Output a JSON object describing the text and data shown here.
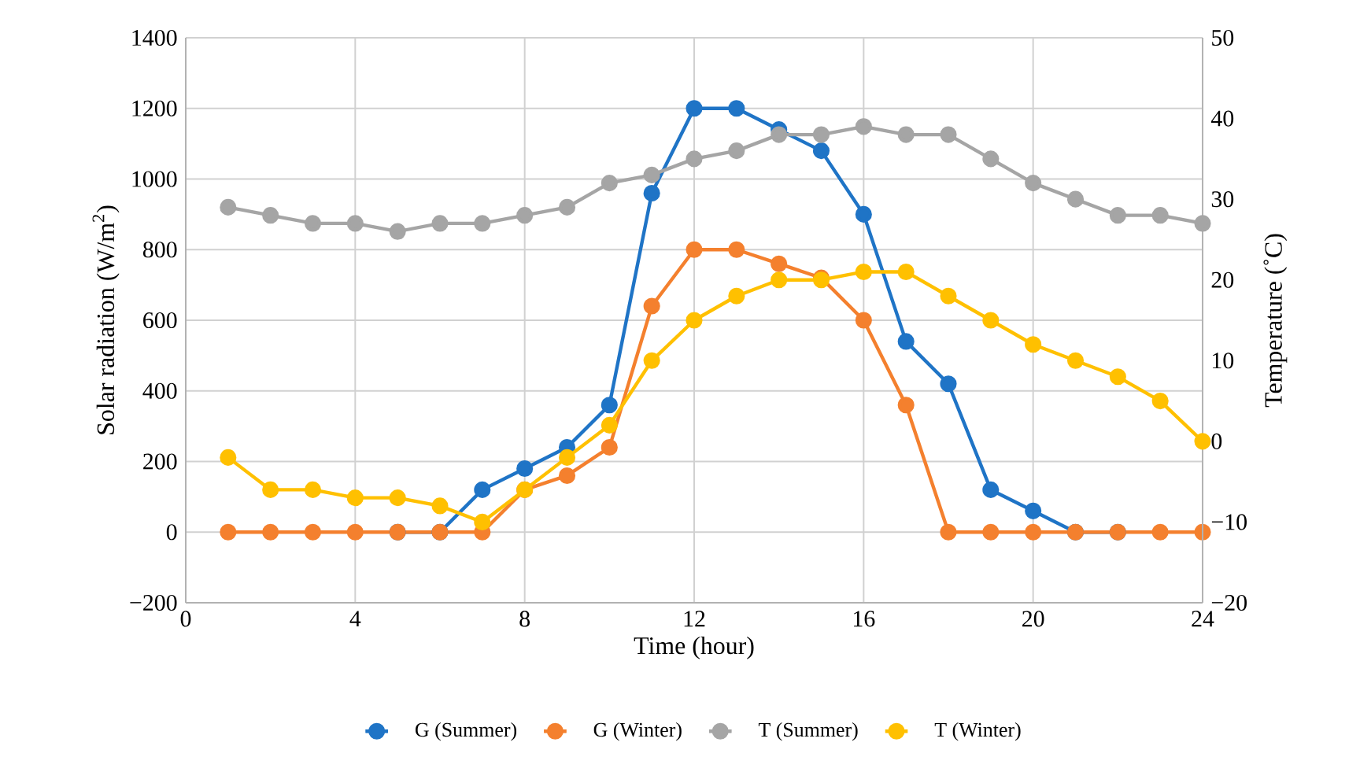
{
  "chart_data": {
    "type": "line",
    "xlabel": "Time (hour)",
    "ylabel": "Solar radiation (W/m$^{2}$)",
    "y2label": "Temperature (˚C)",
    "x": [
      1,
      2,
      3,
      4,
      5,
      6,
      7,
      8,
      9,
      10,
      11,
      12,
      13,
      14,
      15,
      16,
      17,
      18,
      19,
      20,
      21,
      22,
      23,
      24
    ],
    "xlim": [
      0,
      24
    ],
    "xticks": [
      0,
      4,
      8,
      12,
      16,
      20,
      24
    ],
    "ylim": [
      -200,
      1400
    ],
    "yticks": [
      {
        "value": -200,
        "label": "−200"
      },
      0,
      200,
      400,
      600,
      800,
      1000,
      1200,
      1400
    ],
    "y2lim": [
      -20,
      50
    ],
    "y2ticks": [
      {
        "value": -20,
        "label": "−20"
      },
      {
        "value": -10,
        "label": "−10"
      },
      0,
      10,
      20,
      30,
      40,
      50
    ],
    "grid": true,
    "legend": "bottom",
    "marker": "circle",
    "line_style": "solid",
    "series": [
      {
        "name": "G (Summer)",
        "color": "#1f74c6",
        "values": [
          null,
          null,
          null,
          null,
          0,
          0,
          120,
          180,
          240,
          360,
          960,
          1200,
          1200,
          1140,
          1080,
          900,
          540,
          420,
          120,
          60,
          0,
          0,
          null,
          null
        ]
      },
      {
        "name": "G (Winter)",
        "color": "#f4802e",
        "values": [
          0,
          0,
          0,
          0,
          0,
          0,
          0,
          120,
          160,
          240,
          640,
          800,
          800,
          760,
          720,
          600,
          360,
          0,
          0,
          0,
          0,
          0,
          0,
          0
        ]
      },
      {
        "name": "T (Summer)",
        "color": "#a5a5a5",
        "axis": "y2",
        "values": [
          29,
          28,
          27,
          27,
          26,
          27,
          27,
          28,
          29,
          32,
          33,
          35,
          36,
          38,
          38,
          39,
          38,
          38,
          35,
          32,
          30,
          28,
          28,
          27
        ]
      },
      {
        "name": "T (Winter)",
        "color": "#ffc000",
        "axis": "y2",
        "values": [
          -2,
          -6,
          -6,
          -7,
          -7,
          -8,
          -10,
          -6,
          -2,
          2,
          10,
          15,
          18,
          20,
          20,
          21,
          21,
          18,
          15,
          12,
          10,
          8,
          5,
          0
        ]
      }
    ]
  }
}
